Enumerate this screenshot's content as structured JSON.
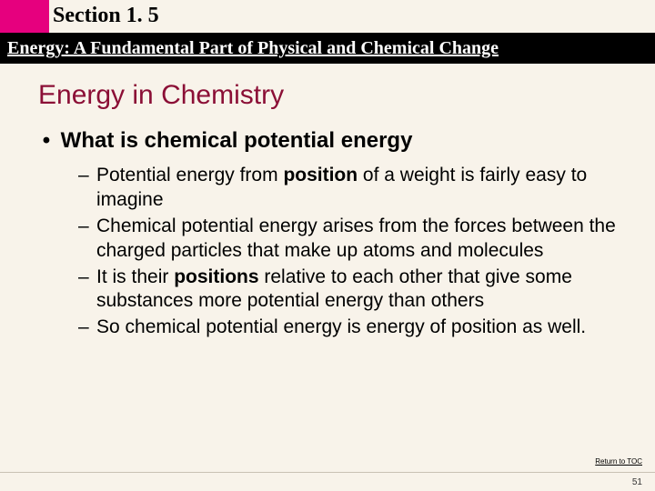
{
  "colors": {
    "pink": "#e6007e",
    "slide_bg": "#f8f3ea",
    "title_maroon": "#8b0f36",
    "black": "#000000",
    "rule": "#c9c2b4"
  },
  "header": {
    "section_label": "Section 1. 5",
    "subtitle": "Energy: A Fundamental Part of Physical and Chemical Change"
  },
  "title": "Energy in Chemistry",
  "level1": {
    "marker": "•",
    "text": "What is chemical potential energy"
  },
  "level2_marker": "–",
  "sub": [
    {
      "pre": "Potential energy from ",
      "bold": "position",
      "post": " of a weight is fairly easy to imagine"
    },
    {
      "pre": "",
      "bold": "",
      "post": "Chemical potential energy arises from the forces between the charged particles that make up atoms and molecules"
    },
    {
      "pre": "It is their ",
      "bold": "positions",
      "post": " relative to each other that give some substances more potential energy than others"
    },
    {
      "pre": "",
      "bold": "",
      "post": "So chemical potential energy is energy of position as well."
    }
  ],
  "footer": {
    "return_link": "Return to TOC",
    "page": "51"
  }
}
